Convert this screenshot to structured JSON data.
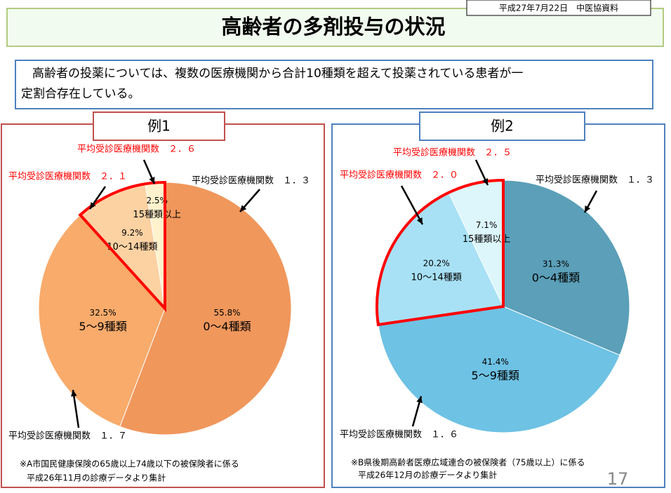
{
  "header": {
    "title": "高齢者の多剤投与の状況",
    "source": "平成27年7月22日　中医協資料"
  },
  "intro": [
    "高齢者の投薬については、複数の医療機関から合計10種類を超えて投薬されている患者が一",
    "定割合存在している。"
  ],
  "page_number": "17",
  "chart_data": [
    {
      "type": "pie",
      "title": "例1",
      "categories": [
        "0〜4種類",
        "5〜9種類",
        "10〜14種類",
        "15種類以上"
      ],
      "values": [
        55.8,
        32.5,
        9.2,
        2.5
      ],
      "value_labels": [
        "55.8%",
        "32.5%",
        "9.2%",
        "2.5%"
      ],
      "colors": [
        "#f0975c",
        "#f8ab6b",
        "#fcd2a3",
        "#fff2cc"
      ],
      "annotations": [
        {
          "text": "平均受診医療機関数　２．６",
          "color": "#ff0000"
        },
        {
          "text": "平均受診医療機関数　２．１",
          "color": "#ff0000"
        },
        {
          "text": "平均受診医療機関数　１．３",
          "color": "#000000"
        },
        {
          "text": "平均受診医療機関数　１．７",
          "color": "#000000"
        }
      ],
      "notes": [
        "※A市国民健康保険の65歳以上74歳以下の被保険者に係る",
        "平成26年11月の診療データより集計"
      ]
    },
    {
      "type": "pie",
      "title": "例2",
      "categories": [
        "0〜4種類",
        "5〜9種類",
        "10〜14種類",
        "15種類以上"
      ],
      "values": [
        31.3,
        41.4,
        20.2,
        7.1
      ],
      "value_labels": [
        "31.3%",
        "41.4%",
        "20.2%",
        "7.1%"
      ],
      "colors": [
        "#5b9fb8",
        "#6ec2e4",
        "#a8e1f5",
        "#dcf6fb"
      ],
      "annotations": [
        {
          "text": "平均受診医療機関数　２．５",
          "color": "#ff0000"
        },
        {
          "text": "平均受診医療機関数　２．０",
          "color": "#ff0000"
        },
        {
          "text": "平均受診医療機関数　１．３",
          "color": "#000000"
        },
        {
          "text": "平均受診医療機関数　１．６",
          "color": "#000000"
        }
      ],
      "notes": [
        "※B県後期高齢者医療広域連合の被保険者（75歳以上）に係る",
        "平成26年12月の診療データより集計"
      ]
    }
  ]
}
